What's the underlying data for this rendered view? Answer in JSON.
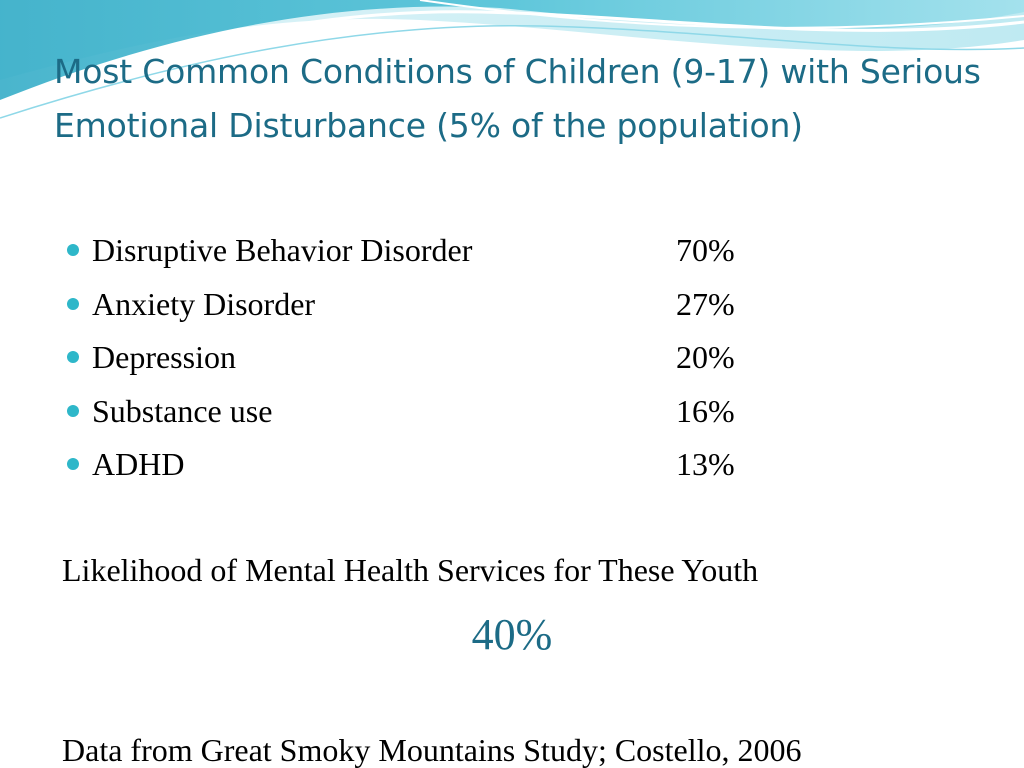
{
  "slide": {
    "title": "Most Common Conditions of Children (9-17) with Serious Emotional Disturbance (5% of the population)",
    "conditions": [
      {
        "label": "Disruptive Behavior Disorder",
        "value": "70%"
      },
      {
        "label": "Anxiety Disorder",
        "value": "27%"
      },
      {
        "label": "Depression",
        "value": "20%"
      },
      {
        "label": "Substance use",
        "value": "16%"
      },
      {
        "label": "ADHD",
        "value": "13%"
      }
    ],
    "likelihood_text": "Likelihood of Mental Health Services for These Youth",
    "likelihood_value": "40%",
    "source": "Data from Great Smoky Mountains Study; Costello, 2006"
  },
  "colors": {
    "title": "#1c6b86",
    "bullet": "#2eb7c9",
    "body_text": "#000000",
    "wave_light": "#bfeaf2",
    "wave_mid": "#7fd3e4",
    "wave_dark": "#2aa8c4"
  }
}
